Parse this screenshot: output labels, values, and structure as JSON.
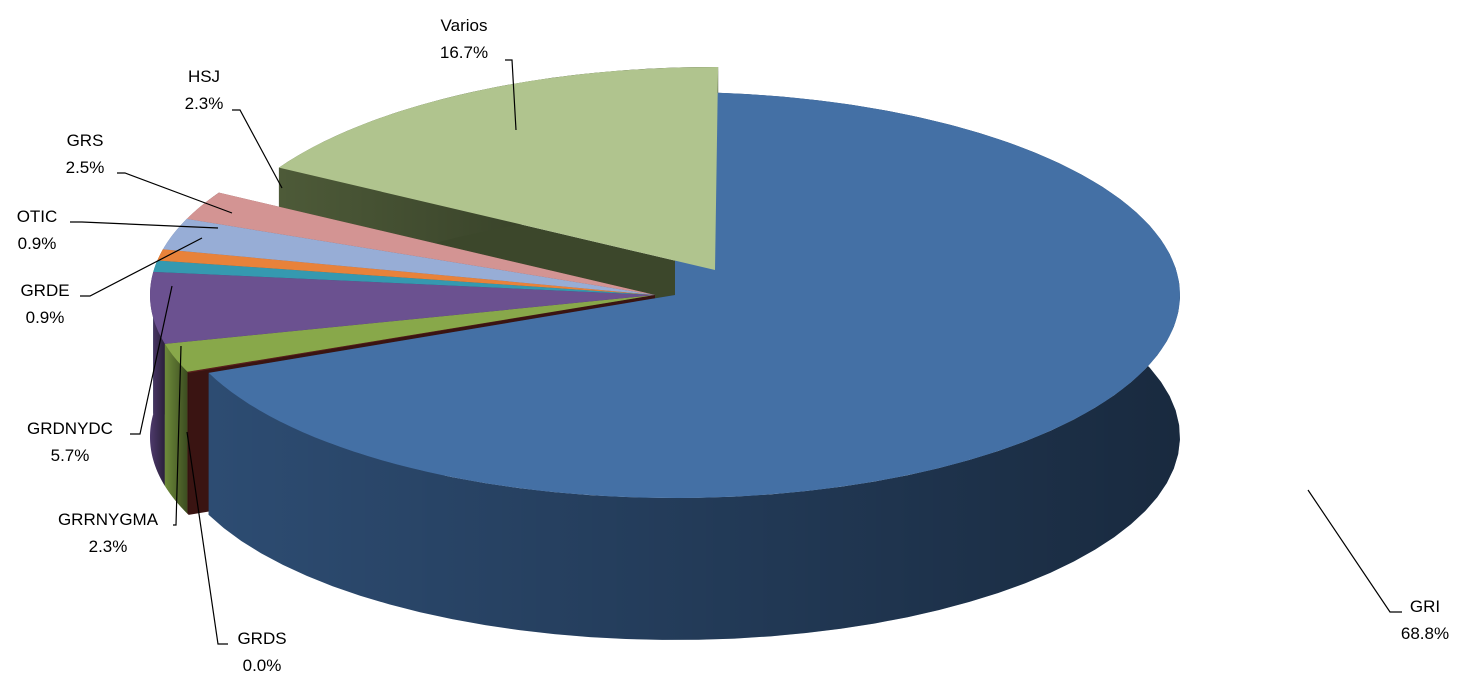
{
  "chart_data": {
    "type": "pie",
    "variant": "3d-exploded",
    "title": "",
    "slices": [
      {
        "label": "GRI",
        "value": 68.8,
        "value_label": "68.8%",
        "color": "#4470a5",
        "side_color": "#2d4c72",
        "dark_color": "#1e2f48"
      },
      {
        "label": "GRDS",
        "value": 0.0,
        "value_label": "0.0%",
        "color": "#5a1f1c",
        "side_color": "#4a1a17",
        "dark_color": "#3a1412"
      },
      {
        "label": "GRRNYGMA",
        "value": 2.3,
        "value_label": "2.3%",
        "color": "#88a84a",
        "side_color": "#6d8a3a",
        "dark_color": "#566e2d"
      },
      {
        "label": "GRDNYDC",
        "value": 5.7,
        "value_label": "5.7%",
        "color": "#6b5190",
        "side_color": "#4e3a6c",
        "dark_color": "#3b2c52"
      },
      {
        "label": "GRDE",
        "value": 0.9,
        "value_label": "0.9%",
        "color": "#3599b0",
        "side_color": "#23707f",
        "dark_color": "#1b5561"
      },
      {
        "label": "OTIC",
        "value": 0.9,
        "value_label": "0.9%",
        "color": "#e8823a",
        "side_color": "#b66228",
        "dark_color": "#8a4a1d"
      },
      {
        "label": "GRS",
        "value": 2.5,
        "value_label": "2.5%",
        "color": "#97add6",
        "side_color": "#6f86b2",
        "dark_color": "#56698e"
      },
      {
        "label": "HSJ",
        "value": 2.3,
        "value_label": "2.3%",
        "color": "#d39493",
        "side_color": "#a86b6a",
        "dark_color": "#7e4f4e"
      },
      {
        "label": "Varios",
        "value": 16.7,
        "value_label": "16.7%",
        "color": "#b0c48e",
        "side_color": "#4d5a38",
        "dark_color": "#3c472b"
      }
    ]
  }
}
